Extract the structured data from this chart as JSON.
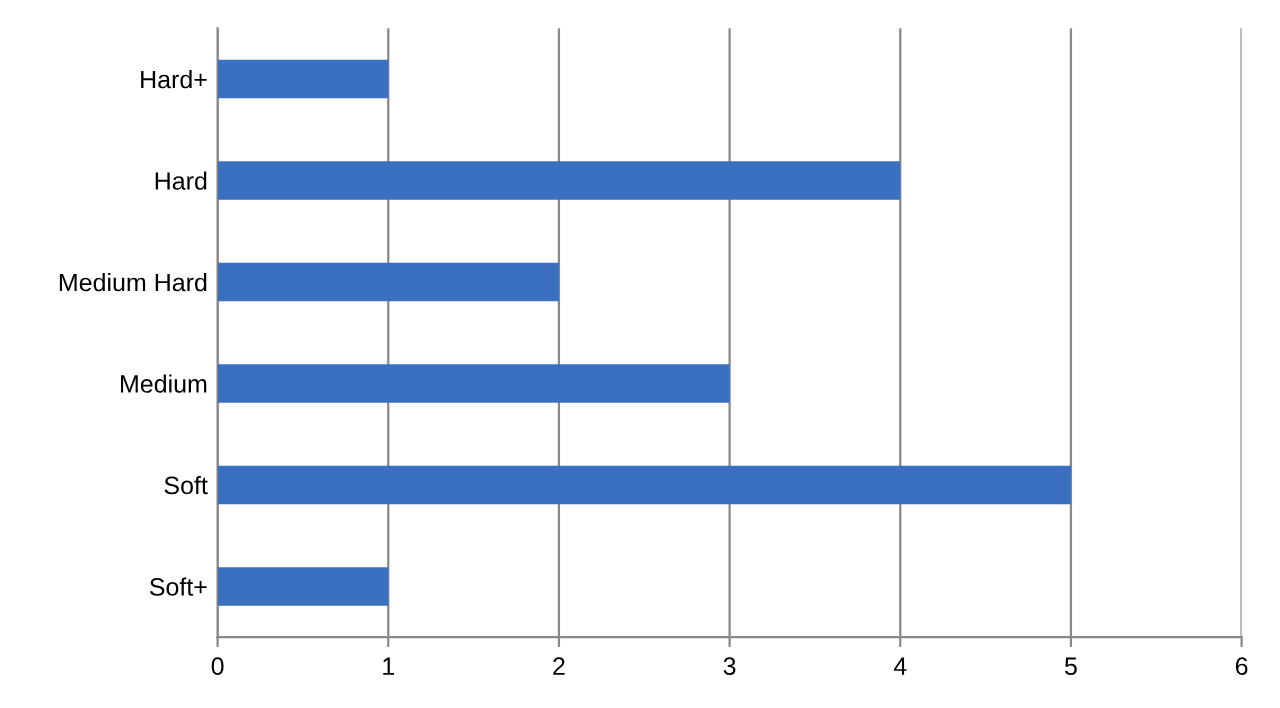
{
  "chart_data": {
    "type": "bar",
    "orientation": "horizontal",
    "categories": [
      "Hard+",
      "Hard",
      "Medium Hard",
      "Medium",
      "Soft",
      "Soft+"
    ],
    "values": [
      1,
      4,
      2,
      3,
      5,
      1
    ],
    "color": "#3b6fbf",
    "xlim": [
      0,
      6
    ],
    "xticks": [
      0,
      1,
      2,
      3,
      4,
      5,
      6
    ],
    "grid": "x"
  }
}
